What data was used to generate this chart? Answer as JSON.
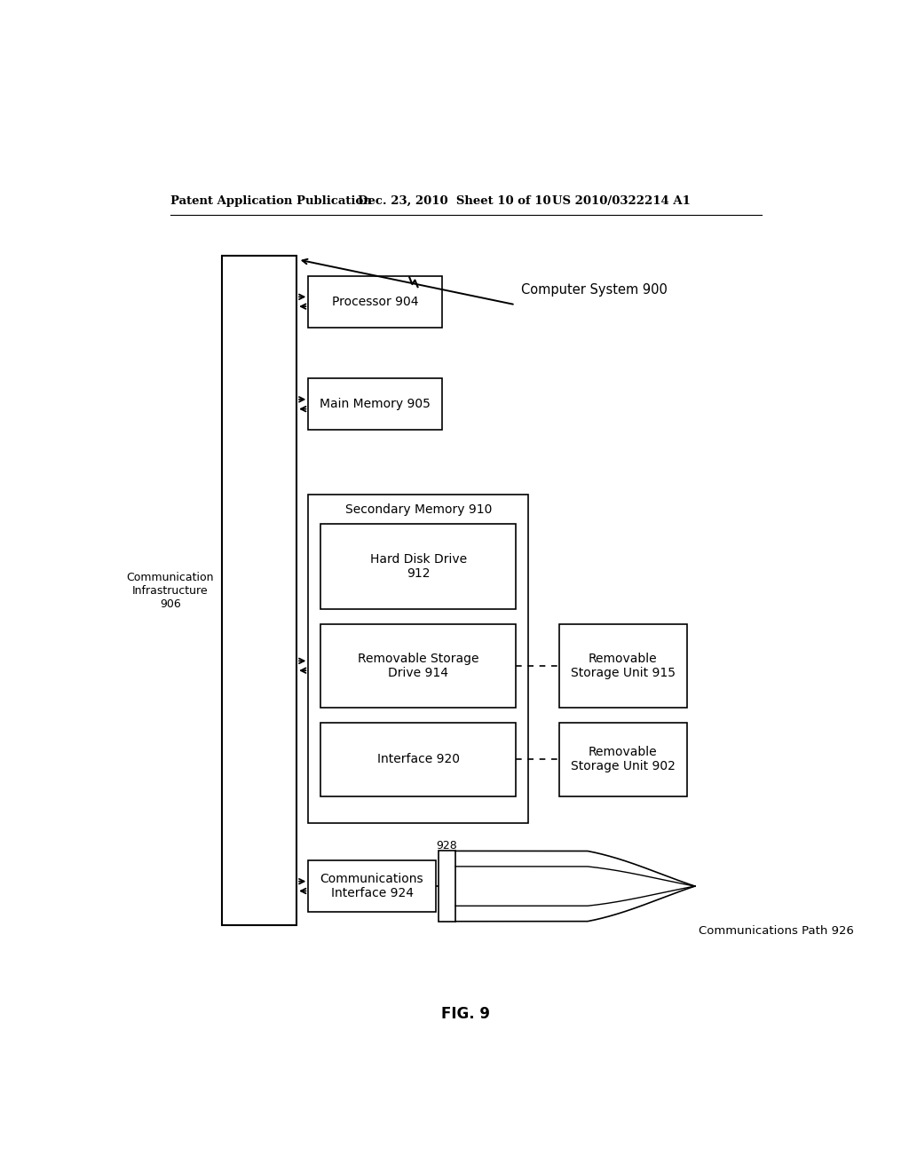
{
  "bg_color": "#ffffff",
  "header_left": "Patent Application Publication",
  "header_mid": "Dec. 23, 2010  Sheet 10 of 10",
  "header_right": "US 2010/0322214 A1",
  "fig_label": "FIG. 9",
  "title_label": "Computer System 900",
  "comm_infra_label": "Communication\nInfrastructure\n906",
  "processor_label": "Processor 904",
  "main_memory_label": "Main Memory 905",
  "sec_memory_label": "Secondary Memory 910",
  "hdd_label": "Hard Disk Drive\n912",
  "rem_storage_drive_label": "Removable Storage\nDrive 914",
  "rem_storage_unit_915_label": "Removable\nStorage Unit 915",
  "interface_label": "Interface 920",
  "rem_storage_unit_902_label": "Removable\nStorage Unit 902",
  "comm_interface_label": "Communications\nInterface 924",
  "comm_path_label": "Communications Path 926",
  "label_928": "928"
}
